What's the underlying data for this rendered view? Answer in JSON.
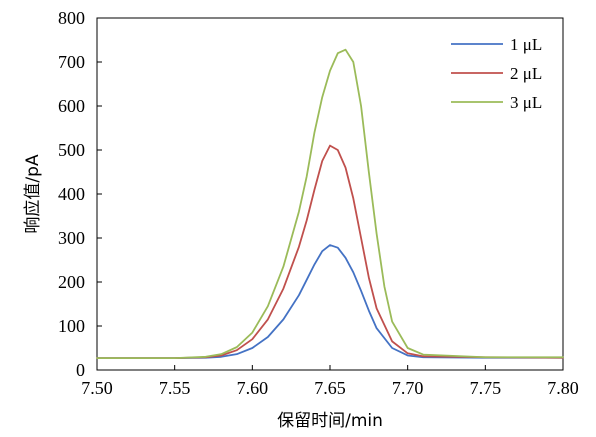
{
  "chart_data": {
    "type": "line",
    "xlabel": "保留时间/min",
    "ylabel": "响应值/pA",
    "xlim": [
      7.5,
      7.8
    ],
    "ylim": [
      0,
      800
    ],
    "x_ticks": [
      "7.50",
      "7.55",
      "7.60",
      "7.65",
      "7.70",
      "7.75",
      "7.80"
    ],
    "y_ticks": [
      "0",
      "100",
      "200",
      "300",
      "400",
      "500",
      "600",
      "700",
      "800"
    ],
    "grid": false,
    "legend_position": "top-right",
    "series": [
      {
        "name": "1 μL",
        "color": "#4472C4",
        "points": [
          [
            7.5,
            27
          ],
          [
            7.55,
            27
          ],
          [
            7.57,
            28
          ],
          [
            7.58,
            30
          ],
          [
            7.59,
            36
          ],
          [
            7.6,
            50
          ],
          [
            7.61,
            75
          ],
          [
            7.62,
            115
          ],
          [
            7.63,
            170
          ],
          [
            7.635,
            205
          ],
          [
            7.64,
            240
          ],
          [
            7.645,
            270
          ],
          [
            7.65,
            284
          ],
          [
            7.655,
            278
          ],
          [
            7.66,
            255
          ],
          [
            7.665,
            222
          ],
          [
            7.67,
            180
          ],
          [
            7.675,
            135
          ],
          [
            7.68,
            95
          ],
          [
            7.69,
            50
          ],
          [
            7.7,
            33
          ],
          [
            7.71,
            29
          ],
          [
            7.75,
            28
          ],
          [
            7.8,
            28
          ]
        ]
      },
      {
        "name": "2 μL",
        "color": "#C0504D",
        "points": [
          [
            7.5,
            27
          ],
          [
            7.55,
            27
          ],
          [
            7.57,
            29
          ],
          [
            7.58,
            33
          ],
          [
            7.59,
            45
          ],
          [
            7.6,
            70
          ],
          [
            7.61,
            115
          ],
          [
            7.62,
            185
          ],
          [
            7.63,
            280
          ],
          [
            7.635,
            340
          ],
          [
            7.64,
            410
          ],
          [
            7.645,
            475
          ],
          [
            7.65,
            510
          ],
          [
            7.655,
            500
          ],
          [
            7.66,
            460
          ],
          [
            7.665,
            390
          ],
          [
            7.67,
            300
          ],
          [
            7.675,
            210
          ],
          [
            7.68,
            140
          ],
          [
            7.69,
            65
          ],
          [
            7.7,
            38
          ],
          [
            7.71,
            31
          ],
          [
            7.75,
            29
          ],
          [
            7.8,
            28
          ]
        ]
      },
      {
        "name": "3 μL",
        "color": "#9BBB59",
        "points": [
          [
            7.5,
            27
          ],
          [
            7.55,
            27
          ],
          [
            7.57,
            30
          ],
          [
            7.58,
            36
          ],
          [
            7.59,
            52
          ],
          [
            7.6,
            85
          ],
          [
            7.61,
            145
          ],
          [
            7.62,
            235
          ],
          [
            7.63,
            360
          ],
          [
            7.635,
            440
          ],
          [
            7.64,
            540
          ],
          [
            7.645,
            620
          ],
          [
            7.65,
            680
          ],
          [
            7.655,
            720
          ],
          [
            7.66,
            728
          ],
          [
            7.665,
            700
          ],
          [
            7.67,
            600
          ],
          [
            7.675,
            450
          ],
          [
            7.68,
            310
          ],
          [
            7.685,
            190
          ],
          [
            7.69,
            110
          ],
          [
            7.7,
            50
          ],
          [
            7.71,
            35
          ],
          [
            7.75,
            29
          ],
          [
            7.8,
            29
          ]
        ]
      }
    ]
  }
}
